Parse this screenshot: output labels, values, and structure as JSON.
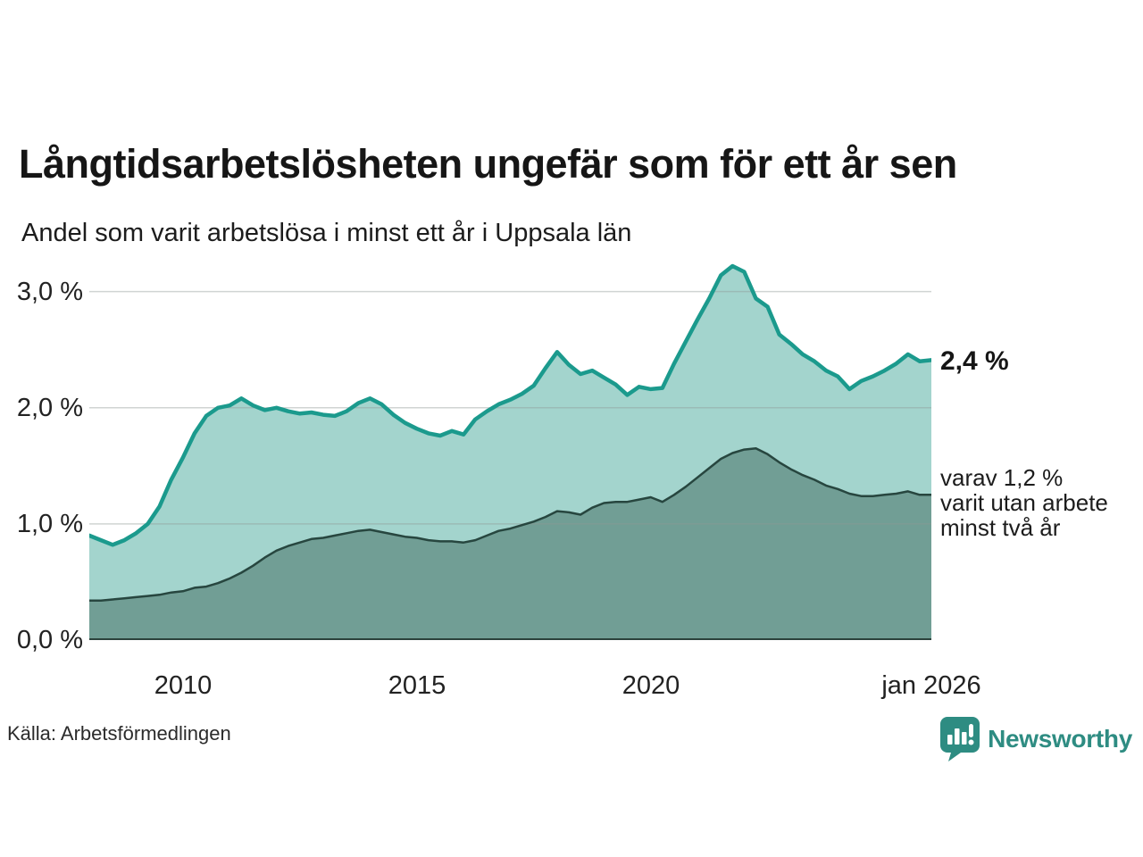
{
  "header": {
    "title": "Långtidsarbetslösheten ungefär som för ett år sen",
    "subtitle": "Andel som varit arbetslösa i minst ett år i Uppsala län"
  },
  "annotations": {
    "latest_total": "2,4 %",
    "two_year_lines": [
      "varav 1,2 %",
      "varit utan arbete",
      "minst två år"
    ]
  },
  "footer": {
    "source": "Källa: Arbetsförmedlingen",
    "brand_name": "Newsworthy",
    "brand_color": "#2e8c82"
  },
  "chart_data": {
    "type": "area",
    "title": "Långtidsarbetslösheten ungefär som för ett år sen",
    "subtitle": "Andel som varit arbetslösa i minst ett år i Uppsala län",
    "x_unit": "decimal year, quarterly samples",
    "xlim": [
      2008,
      2026
    ],
    "ylim": [
      0,
      3.32
    ],
    "grid": "horizontal",
    "legend_position": "none",
    "gridline_color": "#8f9896",
    "axis_line_color": "#2c423c",
    "x": [
      2008,
      2008.25,
      2008.5,
      2008.75,
      2009,
      2009.25,
      2009.5,
      2009.75,
      2010,
      2010.25,
      2010.5,
      2010.75,
      2011,
      2011.25,
      2011.5,
      2011.75,
      2012,
      2012.25,
      2012.5,
      2012.75,
      2013,
      2013.25,
      2013.5,
      2013.75,
      2014,
      2014.25,
      2014.5,
      2014.75,
      2015,
      2015.25,
      2015.5,
      2015.75,
      2016,
      2016.25,
      2016.5,
      2016.75,
      2017,
      2017.25,
      2017.5,
      2017.75,
      2018,
      2018.25,
      2018.5,
      2018.75,
      2019,
      2019.25,
      2019.5,
      2019.75,
      2020,
      2020.25,
      2020.5,
      2020.75,
      2021,
      2021.25,
      2021.5,
      2021.75,
      2022,
      2022.25,
      2022.5,
      2022.75,
      2023,
      2023.25,
      2023.5,
      2023.75,
      2024,
      2024.25,
      2024.5,
      2024.75,
      2025,
      2025.25,
      2025.5,
      2025.75,
      2026
    ],
    "series": [
      {
        "name": "Arbetslösa minst ett år",
        "line_color": "#1b9a8d",
        "fill_color": "#a3d4cd",
        "line_width": 4.5,
        "end_label": "2,4 %",
        "values": [
          0.9,
          0.86,
          0.82,
          0.86,
          0.92,
          1.0,
          1.15,
          1.38,
          1.57,
          1.78,
          1.93,
          2.0,
          2.02,
          2.08,
          2.02,
          1.98,
          2.0,
          1.97,
          1.95,
          1.96,
          1.94,
          1.93,
          1.97,
          2.04,
          2.08,
          2.03,
          1.94,
          1.87,
          1.82,
          1.78,
          1.76,
          1.8,
          1.77,
          1.9,
          1.97,
          2.03,
          2.07,
          2.12,
          2.19,
          2.34,
          2.48,
          2.37,
          2.29,
          2.32,
          2.26,
          2.2,
          2.11,
          2.18,
          2.16,
          2.17,
          2.38,
          2.57,
          2.76,
          2.94,
          3.14,
          3.22,
          3.17,
          2.94,
          2.87,
          2.63,
          2.55,
          2.46,
          2.4,
          2.32,
          2.27,
          2.16,
          2.23,
          2.27,
          2.32,
          2.38,
          2.46,
          2.4,
          2.41
        ]
      },
      {
        "name": "varav arbetslösa minst två år",
        "line_color": "#27463f",
        "fill_color": "#719e95",
        "line_width": 2.5,
        "end_label": "varav 1,2 %",
        "values": [
          0.34,
          0.34,
          0.35,
          0.36,
          0.37,
          0.38,
          0.39,
          0.41,
          0.42,
          0.45,
          0.46,
          0.49,
          0.53,
          0.58,
          0.64,
          0.71,
          0.77,
          0.81,
          0.84,
          0.87,
          0.88,
          0.9,
          0.92,
          0.94,
          0.95,
          0.93,
          0.91,
          0.89,
          0.88,
          0.86,
          0.85,
          0.85,
          0.84,
          0.86,
          0.9,
          0.94,
          0.96,
          0.99,
          1.02,
          1.06,
          1.11,
          1.1,
          1.08,
          1.14,
          1.18,
          1.19,
          1.19,
          1.21,
          1.23,
          1.19,
          1.25,
          1.32,
          1.4,
          1.48,
          1.56,
          1.61,
          1.64,
          1.65,
          1.6,
          1.53,
          1.47,
          1.42,
          1.38,
          1.33,
          1.3,
          1.26,
          1.24,
          1.24,
          1.25,
          1.26,
          1.28,
          1.25,
          1.25
        ]
      }
    ],
    "yticks": [
      {
        "value": 0,
        "label": "0,0 %"
      },
      {
        "value": 1,
        "label": "1,0 %"
      },
      {
        "value": 2,
        "label": "2,0 %"
      },
      {
        "value": 3,
        "label": "3,0 %"
      }
    ],
    "xticks": [
      {
        "value": 2010,
        "label": "2010"
      },
      {
        "value": 2015,
        "label": "2015"
      },
      {
        "value": 2020,
        "label": "2020"
      },
      {
        "value": 2026,
        "label": "jan 2026"
      }
    ]
  }
}
